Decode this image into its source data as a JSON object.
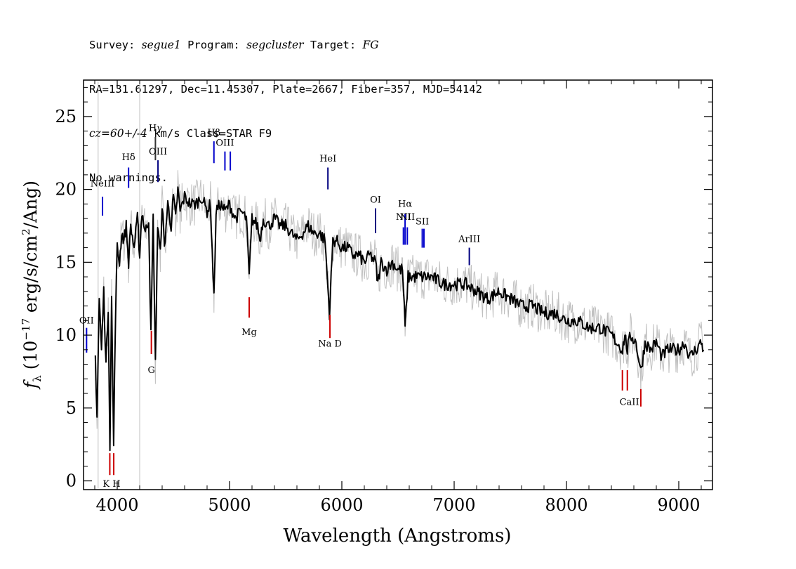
{
  "header": {
    "survey_label": "Survey:",
    "survey": "segue1",
    "program_label": "Program:",
    "program": "segcluster",
    "target_label": "Target:",
    "target": "FG",
    "line2": "RA=131.61297, Dec=11.45307, Plate=2667, Fiber=357, MJD=54142",
    "cz": "cz=60+/-4",
    "cz_rest": "km/s Class=STAR F9",
    "warnings": "No warnings."
  },
  "chart_data": {
    "type": "line",
    "xlabel": "Wavelength (Angstroms)",
    "ylabel": "f_λ (10^-17 erg/s/cm^2/Ang)",
    "xlim": [
      3700,
      9300
    ],
    "ylim": [
      -0.6,
      27.5
    ],
    "xticks": [
      4000,
      5000,
      6000,
      7000,
      8000,
      9000
    ],
    "yticks": [
      0,
      5,
      10,
      15,
      20,
      25
    ],
    "grid": false,
    "series": [
      {
        "name": "flux",
        "color": "#000000",
        "x": [
          3805,
          3820,
          3840,
          3860,
          3880,
          3900,
          3920,
          3935,
          3950,
          3968,
          3985,
          4000,
          4020,
          4040,
          4060,
          4080,
          4101,
          4120,
          4150,
          4180,
          4200,
          4220,
          4250,
          4280,
          4300,
          4320,
          4340,
          4360,
          4384,
          4400,
          4420,
          4450,
          4480,
          4500,
          4520,
          4540,
          4560,
          4600,
          4650,
          4700,
          4750,
          4800,
          4830,
          4861,
          4880,
          4920,
          4960,
          5000,
          5050,
          5100,
          5150,
          5175,
          5200,
          5250,
          5270,
          5300,
          5350,
          5400,
          5450,
          5500,
          5550,
          5600,
          5650,
          5700,
          5750,
          5800,
          5850,
          5890,
          5920,
          5950,
          6000,
          6050,
          6100,
          6150,
          6200,
          6250,
          6300,
          6320,
          6350,
          6400,
          6450,
          6500,
          6540,
          6563,
          6590,
          6650,
          6700,
          6750,
          6800,
          6900,
          7000,
          7100,
          7200,
          7300,
          7400,
          7500,
          7600,
          7700,
          7800,
          7900,
          8000,
          8100,
          8200,
          8300,
          8400,
          8450,
          8498,
          8520,
          8542,
          8570,
          8620,
          8662,
          8700,
          8750,
          8800,
          8850,
          8900,
          8950,
          9000,
          9050,
          9100,
          9150,
          9200,
          9220
        ],
        "y": [
          8.5,
          4.5,
          12.5,
          9.0,
          13.0,
          8.0,
          12.0,
          2.5,
          12.5,
          2.5,
          11.5,
          16.0,
          15.0,
          17.0,
          16.5,
          17.5,
          15.0,
          17.5,
          16.0,
          18.0,
          15.5,
          18.5,
          17.0,
          18.0,
          10.0,
          18.0,
          8.0,
          17.5,
          15.5,
          19.0,
          16.0,
          19.0,
          17.5,
          19.5,
          18.0,
          20.0,
          18.5,
          19.5,
          19.0,
          19.0,
          19.5,
          18.5,
          19.0,
          12.5,
          18.5,
          19.0,
          18.5,
          19.0,
          18.0,
          18.5,
          18.0,
          14.0,
          18.0,
          17.5,
          16.5,
          18.0,
          17.5,
          18.0,
          17.5,
          17.5,
          17.0,
          16.5,
          17.0,
          17.5,
          17.0,
          17.0,
          16.5,
          11.5,
          16.5,
          16.5,
          16.0,
          16.0,
          15.5,
          15.5,
          15.0,
          15.5,
          15.0,
          13.5,
          15.0,
          14.5,
          15.0,
          14.5,
          14.5,
          10.5,
          14.0,
          14.0,
          14.0,
          14.0,
          14.0,
          13.5,
          13.5,
          13.5,
          13.0,
          12.5,
          13.0,
          12.5,
          12.0,
          12.0,
          11.5,
          11.5,
          11.0,
          11.0,
          10.5,
          10.5,
          10.0,
          9.5,
          9.0,
          10.0,
          9.0,
          10.0,
          9.5,
          7.5,
          9.5,
          9.0,
          9.5,
          8.5,
          9.0,
          9.0,
          9.0,
          9.5,
          8.5,
          9.0,
          9.5,
          9.0
        ]
      }
    ],
    "emission_lines": [
      {
        "label": "NeIII",
        "wave": 3869,
        "y1": 18.2,
        "y2": 19.5,
        "color": "#0000cc",
        "label_y": 20.2
      },
      {
        "label": "Hδ",
        "wave": 4101,
        "y1": 20.1,
        "y2": 21.5,
        "color": "#0000cc",
        "label_y": 22.0
      },
      {
        "label": "Hγ",
        "wave": 4340,
        "y1": 22.0,
        "y2": 23.6,
        "color": "#333333",
        "label_y": 24.0
      },
      {
        "label": "OIII",
        "wave": 4363,
        "y1": 20.5,
        "y2": 22.0,
        "color": "#000080",
        "label_y": 22.4
      },
      {
        "label": "Hβ",
        "wave": 4861,
        "y1": 21.8,
        "y2": 23.3,
        "color": "#0000cc",
        "label_y": 23.7
      },
      {
        "label": "OIII",
        "wave": 4959,
        "y1": 21.3,
        "y2": 22.6,
        "color": "#0000cc",
        "label_y": 23.0
      },
      {
        "label": "OIII",
        "wave": 5007,
        "y1": 21.3,
        "y2": 22.6,
        "color": "#0000cc",
        "label_y": null
      },
      {
        "label": "HeI",
        "wave": 5876,
        "y1": 20.0,
        "y2": 21.5,
        "color": "#000080",
        "label_y": 21.9
      },
      {
        "label": "OI",
        "wave": 6300,
        "y1": 17.0,
        "y2": 18.7,
        "color": "#000080",
        "label_y": 19.1
      },
      {
        "label": "NII",
        "wave": 6548,
        "y1": 16.2,
        "y2": 17.4,
        "color": "#0000cc",
        "label_y": 17.9
      },
      {
        "label": "Hα",
        "wave": 6563,
        "y1": 16.2,
        "y2": 18.3,
        "color": "#0000cc",
        "label_y": 18.8
      },
      {
        "label": "NII",
        "wave": 6583,
        "y1": 16.2,
        "y2": 17.4,
        "color": "#0000cc",
        "label_y": 17.9
      },
      {
        "label": "SII",
        "wave": 6716,
        "y1": 16.0,
        "y2": 17.3,
        "color": "#0000cc",
        "label_y": 17.6
      },
      {
        "label": "SII",
        "wave": 6731,
        "y1": 16.0,
        "y2": 17.3,
        "color": "#0000cc",
        "label_y": null
      },
      {
        "label": "ArIII",
        "wave": 7135,
        "y1": 14.8,
        "y2": 16.0,
        "color": "#000080",
        "label_y": 16.4
      },
      {
        "label": "OII",
        "wave": 3727,
        "y1": 8.8,
        "y2": 10.5,
        "color": "#0000cc",
        "label_y": 10.8
      }
    ],
    "absorption_lines": [
      {
        "label": "K",
        "wave": 3934,
        "y1": 0.4,
        "y2": 1.9,
        "color": "#cc0000"
      },
      {
        "label": "H",
        "wave": 3969,
        "y1": 0.4,
        "y2": 1.9,
        "color": "#cc0000"
      },
      {
        "label": "G",
        "wave": 4304,
        "y1": 8.7,
        "y2": 10.3,
        "color": "#cc0000"
      },
      {
        "label": "Mg",
        "wave": 5175,
        "y1": 11.2,
        "y2": 12.6,
        "color": "#cc0000"
      },
      {
        "label": "Na D",
        "wave": 5894,
        "y1": 9.8,
        "y2": 11.4,
        "color": "#cc0000"
      },
      {
        "label": "CaII",
        "wave": 8498,
        "y1": 6.2,
        "y2": 7.6,
        "color": "#cc0000"
      },
      {
        "label": "",
        "wave": 8542,
        "y1": 6.2,
        "y2": 7.6,
        "color": "#cc0000"
      },
      {
        "label": "",
        "wave": 8662,
        "y1": 5.1,
        "y2": 6.3,
        "color": "#cc0000"
      }
    ],
    "absorption_label_positions": [
      {
        "label": "K H",
        "wave": 3950,
        "y": -0.4
      },
      {
        "label": "G",
        "wave": 4304,
        "y": 7.4
      },
      {
        "label": "Mg",
        "wave": 5175,
        "y": 10.0
      },
      {
        "label": "Na D",
        "wave": 5894,
        "y": 9.2
      },
      {
        "label": "CaII",
        "wave": 8560,
        "y": 5.2
      }
    ],
    "shading": {
      "color": "#c0c0c0",
      "noise_spread": 1.6
    }
  }
}
